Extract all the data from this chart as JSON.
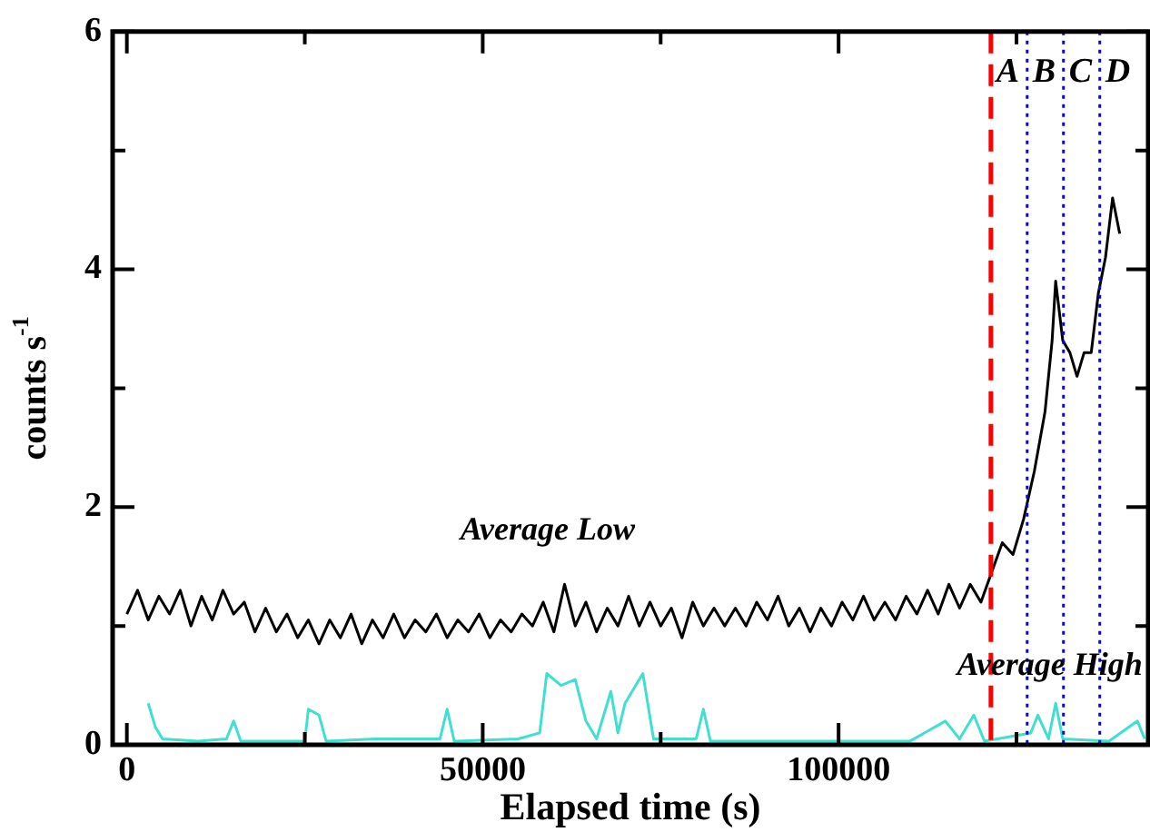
{
  "chart_data": {
    "type": "line",
    "xlabel": "Elapsed time (s)",
    "ylabel": "counts s$^{-1}$",
    "xlim": [
      -2000,
      143500
    ],
    "ylim": [
      0,
      6
    ],
    "xticks": [
      0,
      {
        "value": 25000,
        "label": null
      },
      50000,
      {
        "value": 75000,
        "label": null
      },
      100000,
      {
        "value": 125000,
        "label": null
      }
    ],
    "yticks": [
      0,
      {
        "value": 1,
        "label": null
      },
      2,
      {
        "value": 3,
        "label": null
      },
      4,
      {
        "value": 5,
        "label": null
      },
      6
    ],
    "grid": false,
    "legend": false,
    "marker": "none",
    "series": [
      {
        "color": "#000000",
        "x": [
          0,
          1500,
          3000,
          4500,
          6000,
          7500,
          9000,
          10500,
          12000,
          13500,
          15000,
          16500,
          18000,
          19500,
          21000,
          22500,
          24000,
          25500,
          27000,
          28500,
          30000,
          31500,
          33000,
          34500,
          36000,
          37500,
          39000,
          40500,
          42000,
          43500,
          45000,
          46500,
          48000,
          49500,
          51000,
          52500,
          54000,
          55500,
          57000,
          58500,
          60000,
          61500,
          63000,
          64500,
          66000,
          67500,
          69000,
          70500,
          72000,
          73500,
          75000,
          76500,
          78000,
          79500,
          81000,
          82500,
          84000,
          85500,
          87000,
          88500,
          90000,
          91500,
          93000,
          94500,
          96000,
          97500,
          99000,
          100500,
          102000,
          103500,
          105000,
          106500,
          108000,
          109500,
          111000,
          112500,
          114000,
          115500,
          117000,
          118500,
          120000,
          121500,
          123000,
          124500,
          126000,
          127500,
          129000,
          130000,
          130500,
          131500,
          132500,
          133500,
          134500,
          135500,
          136500,
          137500,
          138500,
          139500
        ],
        "values": [
          1.1,
          1.3,
          1.05,
          1.25,
          1.1,
          1.3,
          1.0,
          1.25,
          1.05,
          1.3,
          1.1,
          1.2,
          0.95,
          1.15,
          0.95,
          1.1,
          0.9,
          1.05,
          0.85,
          1.05,
          0.9,
          1.1,
          0.85,
          1.05,
          0.9,
          1.1,
          0.9,
          1.05,
          0.95,
          1.1,
          0.9,
          1.05,
          0.95,
          1.1,
          0.9,
          1.05,
          0.95,
          1.1,
          1.0,
          1.2,
          0.95,
          1.35,
          1.0,
          1.2,
          0.95,
          1.15,
          1.0,
          1.25,
          1.0,
          1.2,
          1.0,
          1.15,
          0.9,
          1.2,
          1.0,
          1.15,
          1.0,
          1.15,
          1.0,
          1.2,
          1.05,
          1.25,
          1.0,
          1.15,
          0.95,
          1.15,
          1.0,
          1.2,
          1.05,
          1.25,
          1.05,
          1.2,
          1.05,
          1.25,
          1.1,
          1.3,
          1.1,
          1.35,
          1.15,
          1.35,
          1.2,
          1.45,
          1.7,
          1.6,
          1.9,
          2.3,
          2.8,
          3.4,
          3.9,
          3.4,
          3.3,
          3.1,
          3.3,
          3.3,
          3.8,
          4.1,
          4.6,
          4.3
        ]
      },
      {
        "color": "#40e0d0",
        "x": [
          3000,
          4000,
          5000,
          10000,
          14000,
          15000,
          16000,
          25000,
          25500,
          27000,
          28000,
          35000,
          44000,
          45000,
          46000,
          55000,
          58000,
          59000,
          61000,
          63000,
          64500,
          66000,
          68000,
          69000,
          70000,
          72500,
          74000,
          80000,
          81000,
          82000,
          95000,
          110000,
          115000,
          117000,
          119000,
          120500,
          127000,
          128000,
          129500,
          130500,
          131500,
          138000,
          142000,
          143000
        ],
        "values": [
          0.35,
          0.15,
          0.05,
          0.03,
          0.05,
          0.2,
          0.03,
          0.03,
          0.3,
          0.25,
          0.03,
          0.05,
          0.05,
          0.3,
          0.03,
          0.05,
          0.1,
          0.6,
          0.5,
          0.55,
          0.2,
          0.05,
          0.45,
          0.1,
          0.35,
          0.6,
          0.05,
          0.05,
          0.3,
          0.03,
          0.03,
          0.03,
          0.2,
          0.05,
          0.25,
          0.03,
          0.1,
          0.25,
          0.05,
          0.35,
          0.05,
          0.03,
          0.2,
          0.05
        ]
      }
    ],
    "ref_lines": [
      {
        "axis": "x",
        "value": 121400,
        "label": "A",
        "color": "#ff0000",
        "line_style": "dashed"
      },
      {
        "axis": "x",
        "value": 126500,
        "label": "B",
        "color": "#0000ff",
        "line_style": "dotted"
      },
      {
        "axis": "x",
        "value": 131600,
        "label": "C",
        "color": "#0000ff",
        "line_style": "dotted"
      },
      {
        "axis": "x",
        "value": 136700,
        "label": "D",
        "color": "#0000ff",
        "line_style": "dotted"
      }
    ],
    "annotations": [
      "Average Low",
      "Average High"
    ]
  }
}
